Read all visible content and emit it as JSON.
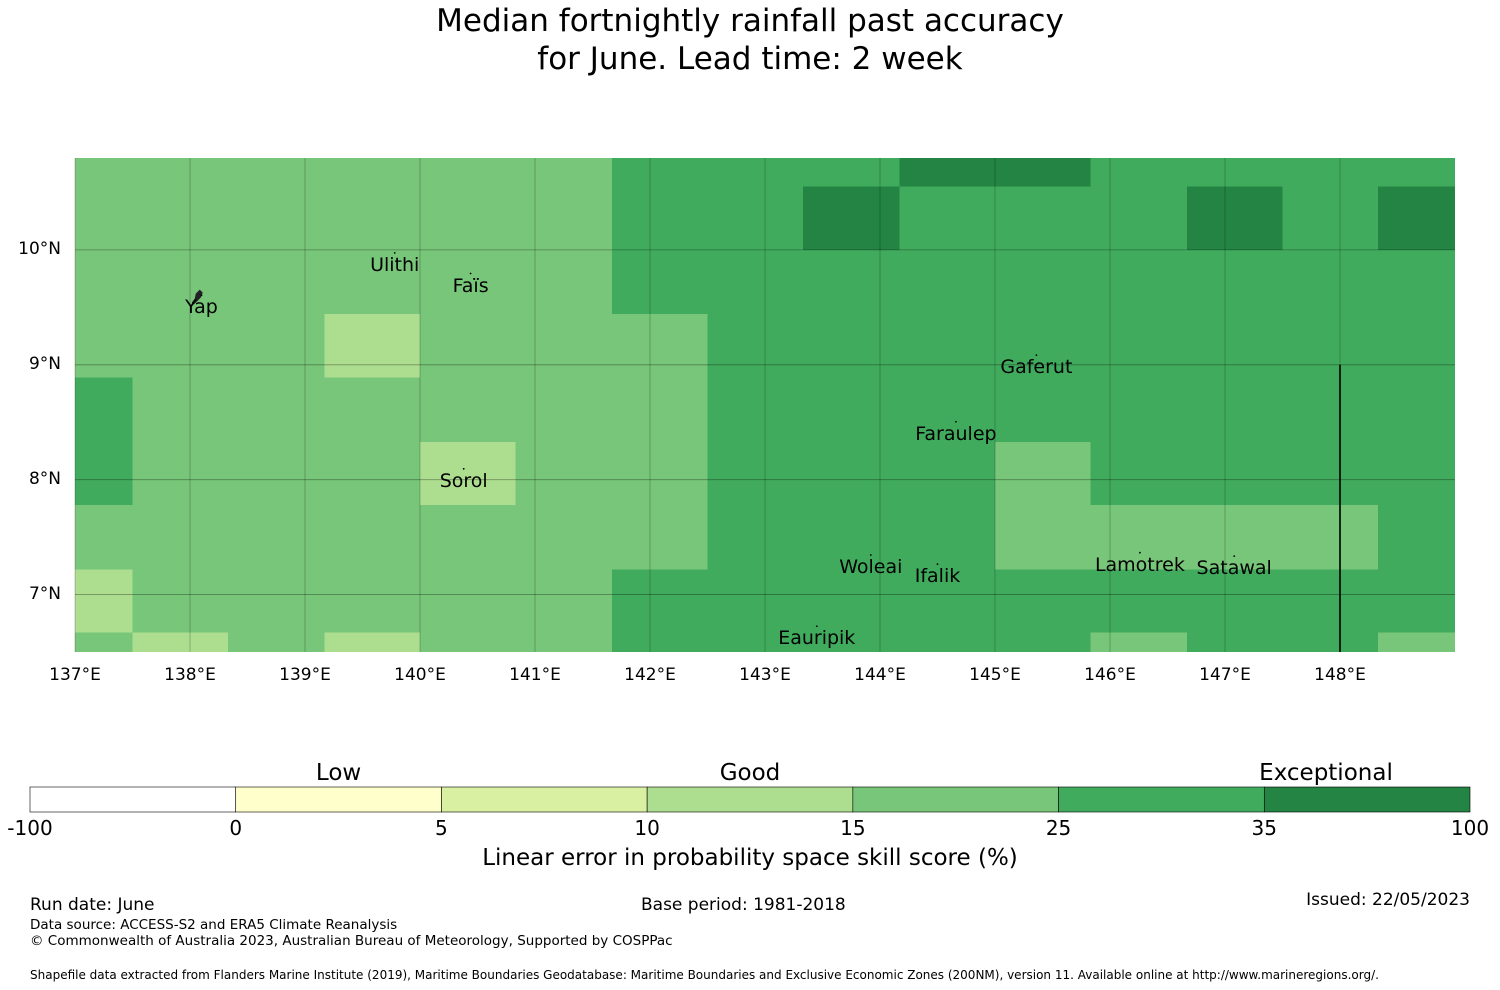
{
  "title": {
    "line1": "Median fortnightly rainfall past accuracy",
    "line2": "for June. Lead time: 2 week"
  },
  "map": {
    "lon_range": [
      137,
      149
    ],
    "lat_range": [
      6.5,
      10.8
    ],
    "lon_ticks": [
      "137°E",
      "138°E",
      "139°E",
      "140°E",
      "141°E",
      "142°E",
      "143°E",
      "144°E",
      "145°E",
      "146°E",
      "147°E",
      "148°E"
    ],
    "lat_ticks": [
      "10°N",
      "9°N",
      "8°N",
      "7°N"
    ],
    "places": [
      {
        "name": "Ulithi",
        "lon": 139.78,
        "lat": 9.87
      },
      {
        "name": "Faïs",
        "lon": 140.44,
        "lat": 9.69
      },
      {
        "name": "Yap",
        "lon": 138.1,
        "lat": 9.5
      },
      {
        "name": "Gaferut",
        "lon": 145.36,
        "lat": 8.98
      },
      {
        "name": "Faraulep",
        "lon": 144.66,
        "lat": 8.4
      },
      {
        "name": "Sorol",
        "lon": 140.38,
        "lat": 7.99
      },
      {
        "name": "Woleai",
        "lon": 143.92,
        "lat": 7.24
      },
      {
        "name": "Ifalik",
        "lon": 144.5,
        "lat": 7.16
      },
      {
        "name": "Lamotrek",
        "lon": 146.26,
        "lat": 7.26
      },
      {
        "name": "Satawal",
        "lon": 147.08,
        "lat": 7.23
      },
      {
        "name": "Eauripik",
        "lon": 143.45,
        "lat": 6.62
      }
    ],
    "grid_cells": [
      {
        "lon": [
          137.0,
          141.67
        ],
        "lat": [
          10.55,
          10.8
        ],
        "score": 20
      },
      {
        "lon": [
          141.67,
          144.17
        ],
        "lat": [
          10.55,
          10.8
        ],
        "score": 30
      },
      {
        "lon": [
          144.17,
          145.83
        ],
        "lat": [
          10.55,
          10.8
        ],
        "score": 40
      },
      {
        "lon": [
          145.83,
          149.0
        ],
        "lat": [
          10.55,
          10.8
        ],
        "score": 30
      },
      {
        "lon": [
          137.0,
          142.5
        ],
        "lat": [
          9.44,
          10.55
        ],
        "score": 20
      },
      {
        "lon": [
          142.5,
          143.33
        ],
        "lat": [
          10.0,
          10.55
        ],
        "score": 30
      },
      {
        "lon": [
          143.33,
          144.17
        ],
        "lat": [
          10.0,
          10.55
        ],
        "score": 40
      },
      {
        "lon": [
          144.17,
          146.67
        ],
        "lat": [
          10.0,
          10.55
        ],
        "score": 30
      },
      {
        "lon": [
          146.67,
          147.5
        ],
        "lat": [
          10.0,
          10.55
        ],
        "score": 40
      },
      {
        "lon": [
          147.5,
          148.33
        ],
        "lat": [
          10.0,
          10.55
        ],
        "score": 30
      },
      {
        "lon": [
          148.33,
          149.0
        ],
        "lat": [
          10.0,
          10.55
        ],
        "score": 40
      },
      {
        "lon": [
          142.5,
          149.0
        ],
        "lat": [
          9.44,
          10.0
        ],
        "score": 30
      },
      {
        "lon": [
          141.67,
          142.5
        ],
        "lat": [
          9.44,
          10.55
        ],
        "score": 30
      },
      {
        "lon": [
          137.0,
          139.17
        ],
        "lat": [
          8.89,
          9.44
        ],
        "score": 20
      },
      {
        "lon": [
          139.17,
          140.0
        ],
        "lat": [
          8.89,
          9.44
        ],
        "score": 12
      },
      {
        "lon": [
          140.0,
          142.5
        ],
        "lat": [
          8.89,
          9.44
        ],
        "score": 20
      },
      {
        "lon": [
          142.5,
          149.0
        ],
        "lat": [
          8.89,
          9.44
        ],
        "score": 30
      },
      {
        "lon": [
          137.0,
          137.5
        ],
        "lat": [
          7.78,
          8.89
        ],
        "score": 30
      },
      {
        "lon": [
          137.5,
          142.5
        ],
        "lat": [
          7.78,
          8.89
        ],
        "score": 20
      },
      {
        "lon": [
          140.0,
          140.83
        ],
        "lat": [
          7.78,
          8.33
        ],
        "score": 12
      },
      {
        "lon": [
          142.5,
          149.0
        ],
        "lat": [
          7.78,
          8.89
        ],
        "score": 30
      },
      {
        "lon": [
          145.0,
          145.83
        ],
        "lat": [
          7.78,
          8.33
        ],
        "score": 20
      },
      {
        "lon": [
          137.0,
          142.5
        ],
        "lat": [
          7.22,
          7.78
        ],
        "score": 20
      },
      {
        "lon": [
          142.5,
          145.0
        ],
        "lat": [
          7.22,
          7.78
        ],
        "score": 30
      },
      {
        "lon": [
          145.0,
          148.33
        ],
        "lat": [
          7.22,
          7.78
        ],
        "score": 20
      },
      {
        "lon": [
          148.33,
          149.0
        ],
        "lat": [
          7.22,
          7.78
        ],
        "score": 30
      },
      {
        "lon": [
          137.0,
          137.5
        ],
        "lat": [
          6.67,
          7.22
        ],
        "score": 12
      },
      {
        "lon": [
          137.5,
          141.67
        ],
        "lat": [
          6.67,
          7.22
        ],
        "score": 20
      },
      {
        "lon": [
          141.67,
          149.0
        ],
        "lat": [
          6.67,
          7.22
        ],
        "score": 30
      },
      {
        "lon": [
          137.0,
          137.5
        ],
        "lat": [
          6.5,
          6.67
        ],
        "score": 20
      },
      {
        "lon": [
          137.5,
          138.33
        ],
        "lat": [
          6.5,
          6.67
        ],
        "score": 12
      },
      {
        "lon": [
          138.33,
          139.17
        ],
        "lat": [
          6.5,
          6.67
        ],
        "score": 20
      },
      {
        "lon": [
          139.17,
          140.0
        ],
        "lat": [
          6.5,
          6.67
        ],
        "score": 12
      },
      {
        "lon": [
          140.0,
          141.67
        ],
        "lat": [
          6.5,
          6.67
        ],
        "score": 20
      },
      {
        "lon": [
          141.67,
          145.83
        ],
        "lat": [
          6.5,
          6.67
        ],
        "score": 30
      },
      {
        "lon": [
          145.83,
          146.67
        ],
        "lat": [
          6.5,
          6.67
        ],
        "score": 20
      },
      {
        "lon": [
          146.67,
          148.33
        ],
        "lat": [
          6.5,
          6.67
        ],
        "score": 30
      },
      {
        "lon": [
          148.33,
          149.0
        ],
        "lat": [
          6.5,
          6.67
        ],
        "score": 20
      }
    ],
    "boundary_line": {
      "lon": 148.0,
      "lat": [
        6.5,
        9.0
      ]
    }
  },
  "colorbar": {
    "categories": [
      "Low",
      "Good",
      "Exceptional"
    ],
    "bins": [
      {
        "from": -100,
        "to": 0,
        "color": "#ffffff"
      },
      {
        "from": 0,
        "to": 5,
        "color": "#ffffcc"
      },
      {
        "from": 5,
        "to": 10,
        "color": "#d9f0a3"
      },
      {
        "from": 10,
        "to": 15,
        "color": "#addd8e"
      },
      {
        "from": 15,
        "to": 25,
        "color": "#78c679"
      },
      {
        "from": 25,
        "to": 35,
        "color": "#41ab5d"
      },
      {
        "from": 35,
        "to": 100,
        "color": "#238443"
      }
    ],
    "tick_labels": [
      "-100",
      "0",
      "5",
      "10",
      "15",
      "25",
      "35",
      "100"
    ],
    "label": "Linear error in probability space skill score (%)"
  },
  "footer": {
    "run_date": "Run date: June",
    "base_period": "Base period: 1981-2018",
    "issued": "Issued: 22/05/2023",
    "data_source": "Data source: ACCESS-S2 and ERA5 Climate Reanalysis",
    "copyright": "© Commonwealth of Australia 2023, Australian Bureau of Meteorology, Supported by COSPPac",
    "shapefile": "Shapefile data extracted from Flanders Marine Institute (2019), Maritime Boundaries Geodatabase: Maritime Boundaries and Exclusive Economic Zones (200NM), version 11. Available online at http://www.marineregions.org/."
  }
}
